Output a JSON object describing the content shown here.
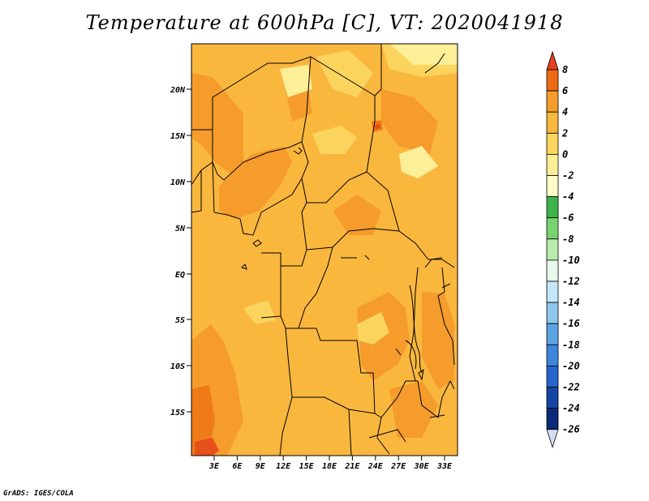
{
  "title": "Temperature at 600hPa [C], VT: 2020041918",
  "credit": "GrADS: IGES/COLA",
  "map": {
    "lat_ticks": [
      "20N",
      "15N",
      "10N",
      "5N",
      "EQ",
      "5S",
      "10S",
      "15S"
    ],
    "lon_ticks": [
      "3E",
      "6E",
      "9E",
      "12E",
      "15E",
      "18E",
      "21E",
      "24E",
      "27E",
      "30E",
      "33E"
    ],
    "colors": {
      "base": "#fab73e",
      "warm": "#f59c2c",
      "warmer": "#ee7b18",
      "hot": "#e6501a",
      "cool": "#fbd45e",
      "coolest": "#fdee98",
      "border": "#000000"
    }
  },
  "colorbar": {
    "labels": [
      "8",
      "6",
      "4",
      "2",
      "0",
      "-2",
      "-4",
      "-6",
      "-8",
      "-10",
      "-12",
      "-14",
      "-16",
      "-18",
      "-20",
      "-22",
      "-24",
      "-26"
    ],
    "colors": [
      "#e8401b",
      "#ee6a14",
      "#f59c2c",
      "#fab73e",
      "#fbd45e",
      "#fdee98",
      "#fffcc8",
      "#3cb44a",
      "#78d36e",
      "#b7ecae",
      "#e8f9ec",
      "#c4e6f8",
      "#8fc6ee",
      "#5aa4e4",
      "#3d86dc",
      "#2666cc",
      "#1545a4",
      "#0c2a7a",
      "#d6dcf4"
    ]
  }
}
